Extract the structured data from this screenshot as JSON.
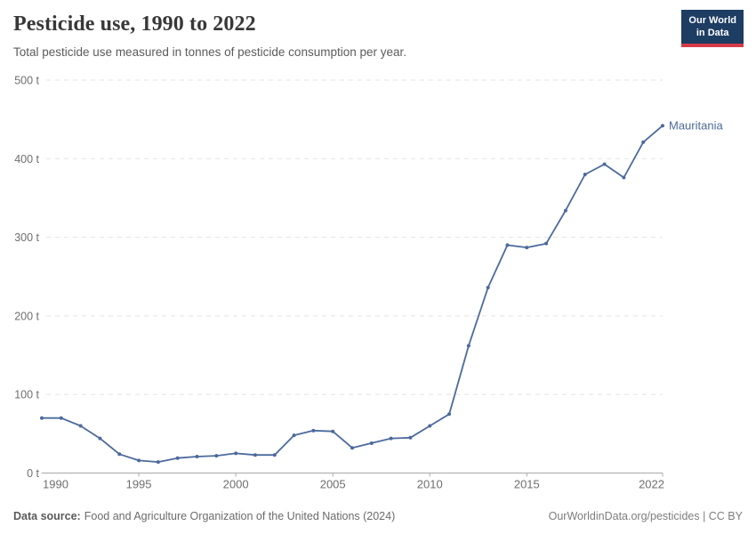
{
  "header": {
    "title": "Pesticide use, 1990 to 2022",
    "subtitle": "Total pesticide use measured in tonnes of pesticide consumption per year.",
    "logo": {
      "line1": "Our World",
      "line2": "in Data",
      "bg_color": "#1d3d63",
      "stripe_color": "#d73a49"
    }
  },
  "chart_data": {
    "type": "line",
    "title": "Pesticide use, 1990 to 2022",
    "unit": "t",
    "ylabel": "",
    "xlabel": "",
    "ylim": [
      0,
      500
    ],
    "y_ticks": [
      0,
      100,
      200,
      300,
      400,
      500
    ],
    "x_ticks": [
      1990,
      1995,
      2000,
      2005,
      2010,
      2015,
      2022
    ],
    "grid": "horizontal-dashed",
    "legend": "end-of-line-label",
    "x": [
      1990,
      1991,
      1992,
      1993,
      1994,
      1995,
      1996,
      1997,
      1998,
      1999,
      2000,
      2001,
      2002,
      2003,
      2004,
      2005,
      2006,
      2007,
      2008,
      2009,
      2010,
      2011,
      2012,
      2013,
      2014,
      2015,
      2016,
      2017,
      2018,
      2019,
      2020,
      2021,
      2022
    ],
    "series": [
      {
        "name": "Mauritania",
        "color": "#4c6a9c",
        "values": [
          70,
          70,
          60,
          44,
          24,
          16,
          14,
          19,
          21,
          22,
          25,
          23,
          23,
          48,
          54,
          53,
          32,
          38,
          44,
          45,
          60,
          75,
          162,
          236,
          290,
          287,
          292,
          334,
          380,
          393,
          376,
          421,
          442
        ]
      }
    ]
  },
  "footer": {
    "source_label": "Data source:",
    "source_text": "Food and Agriculture Organization of the United Nations (2024)",
    "attribution": "OurWorldinData.org/pesticides | CC BY"
  },
  "colors": {
    "title": "#383838",
    "subtitle": "#5b5b5b",
    "axis_label": "#6e6e6e",
    "gridline": "#e3e3e3",
    "axis_line": "#a8a8a8",
    "series": "#4c6a9c"
  }
}
